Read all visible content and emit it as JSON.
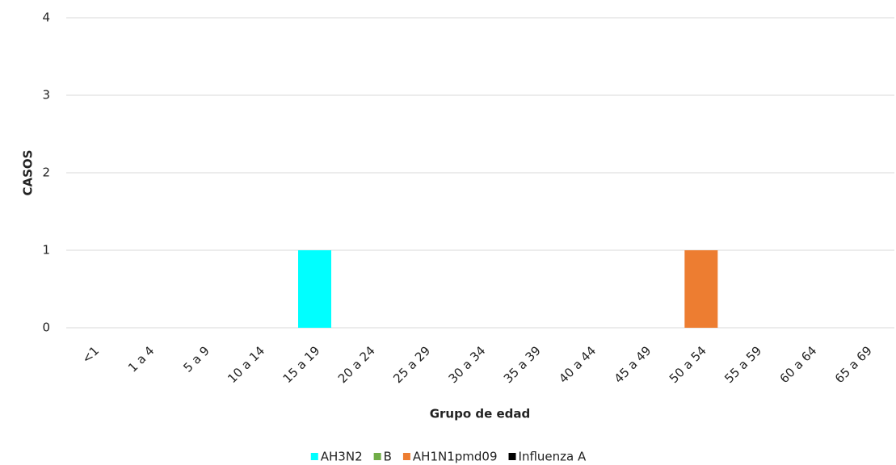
{
  "chart_data": {
    "type": "stacked_bar",
    "x_label": "Grupo de edad",
    "y_label": "CASOS",
    "categories": [
      "<1",
      "1 a 4",
      "5 a 9",
      "10 a 14",
      "15 a 19",
      "20 a 24",
      "25 a 29",
      "30 a 34",
      "35 a 39",
      "40 a 44",
      "45 a 49",
      "50 a 54",
      "55 a 59",
      "60 a 64",
      "65 a 69"
    ],
    "series": [
      {
        "name": "AH3N2",
        "color": "#00ffff",
        "values": [
          0,
          0,
          0,
          0,
          1,
          0,
          0,
          0,
          0,
          0,
          0,
          0,
          0,
          0,
          0
        ]
      },
      {
        "name": "B",
        "color": "#70ad47",
        "values": [
          0,
          0,
          0,
          0,
          0,
          0,
          0,
          0,
          0,
          0,
          0,
          0,
          0,
          0,
          0
        ]
      },
      {
        "name": "AH1N1pmd09",
        "color": "#ed7d31",
        "values": [
          0,
          0,
          0,
          0,
          0,
          0,
          0,
          0,
          0,
          0,
          0,
          1,
          0,
          0,
          0
        ]
      },
      {
        "name": "Influenza A",
        "color": "#000000",
        "values": [
          0,
          0,
          0,
          0,
          0,
          0,
          0,
          0,
          0,
          0,
          0,
          0,
          0,
          0,
          0
        ]
      }
    ],
    "ylim": [
      0,
      4
    ],
    "yticks": [
      0,
      1,
      2,
      3,
      4
    ],
    "grid": true,
    "legend": "bottom"
  }
}
